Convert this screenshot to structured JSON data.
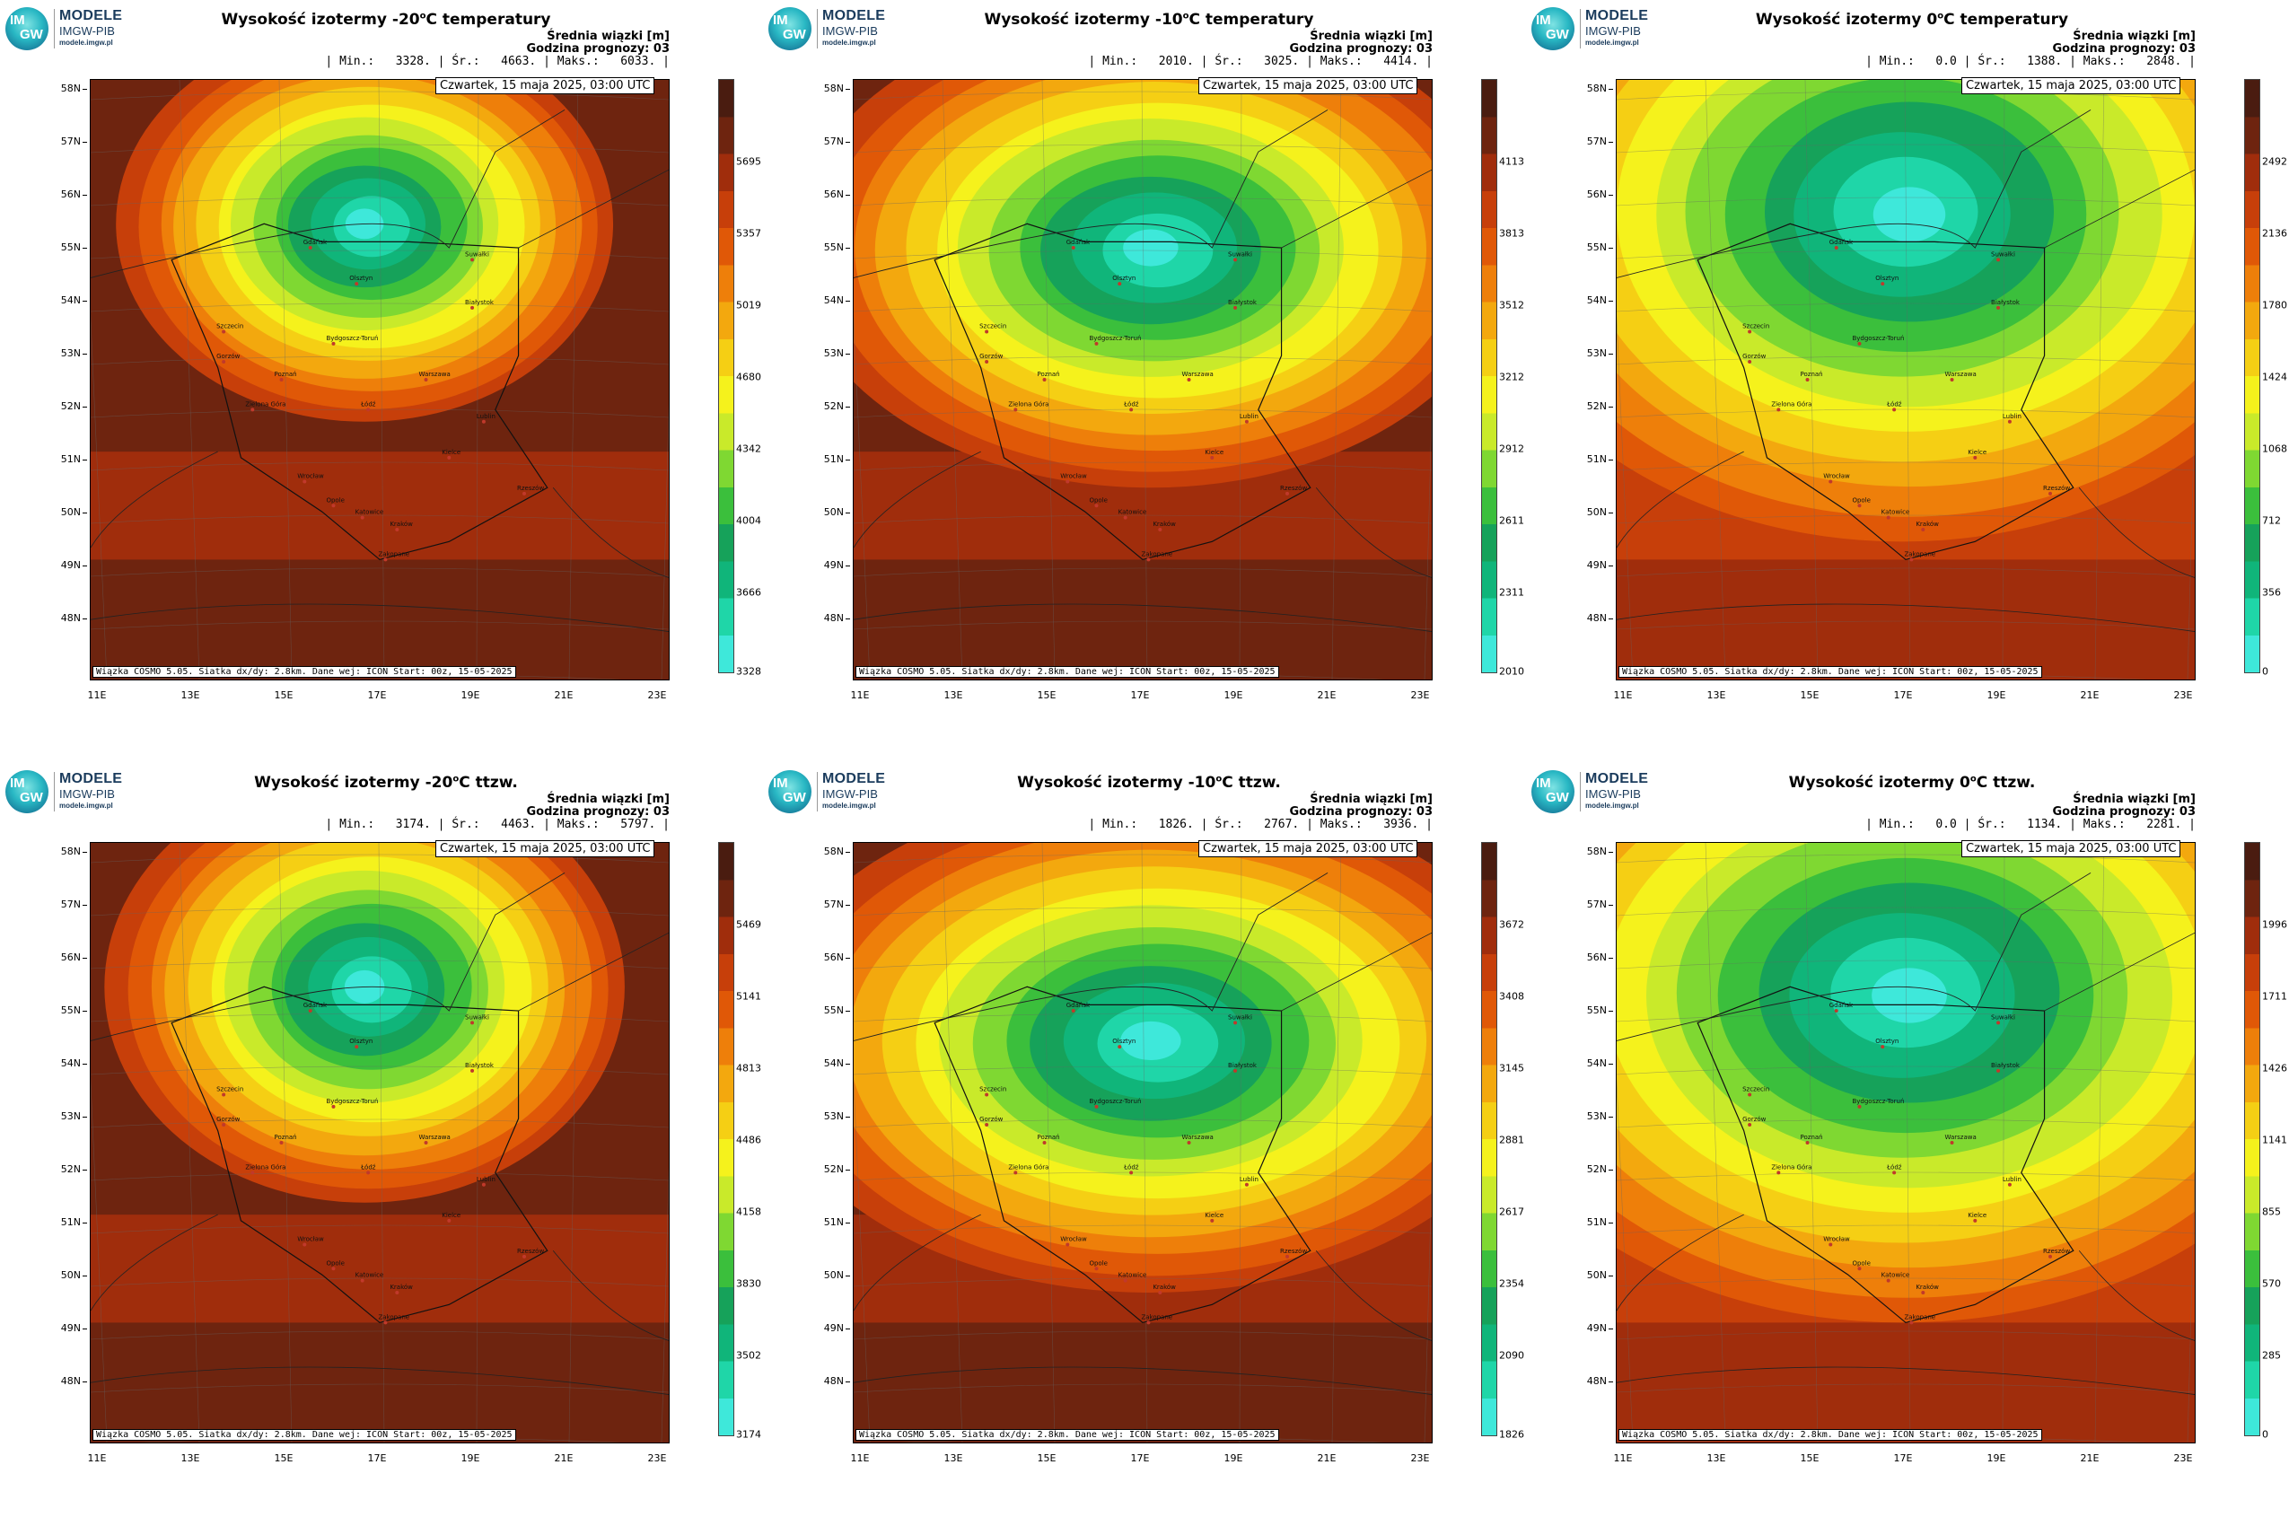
{
  "logo": {
    "line1": "MODELE",
    "line2": "IMGW-PIB",
    "line3": "modele.imgw.pl",
    "badge_top": "IM",
    "badge_bottom": "GW"
  },
  "common": {
    "mean_label": "Średnia wiązki [m]",
    "forecast_hour": "Godzina prognozy: 03",
    "date": "Czwartek, 15 maja 2025, 03:00 UTC",
    "credit": "Wiązka COSMO 5.05. Siatka dx/dy: 2.8km. Dane wej: ICON Start: 00z, 15-05-2025",
    "lat_labels": [
      "58N",
      "57N",
      "56N",
      "55N",
      "54N",
      "53N",
      "52N",
      "51N",
      "50N",
      "49N",
      "48N"
    ],
    "lon_labels": [
      "11E",
      "13E",
      "15E",
      "17E",
      "19E",
      "21E",
      "23E"
    ]
  },
  "colors": {
    "scale": [
      "#3ee8da",
      "#1fd6a8",
      "#10b57a",
      "#16a25a",
      "#3bbf3c",
      "#7fd832",
      "#c9ea2a",
      "#f5f21c",
      "#f5cf14",
      "#f3a80e",
      "#ee7f0a",
      "#e05807",
      "#c73f0a",
      "#a02d0c",
      "#6e240f",
      "#4a1c10"
    ]
  },
  "panels": [
    {
      "name": "iso-m20-temp",
      "title_prefix": "Wysokość izotermy -20",
      "title_suffix": "C temperatury",
      "deg": "o",
      "min": "3328.",
      "mean": "4663.",
      "max": "6033.",
      "colorbar": [
        "5695",
        "5357",
        "5019",
        "4680",
        "4342",
        "4004",
        "3666",
        "3328"
      ]
    },
    {
      "name": "iso-m10-temp",
      "title_prefix": "Wysokość izotermy -10",
      "title_suffix": "C temperatury",
      "deg": "o",
      "min": "2010.",
      "mean": "3025.",
      "max": "4414.",
      "colorbar": [
        "4113",
        "3813",
        "3512",
        "3212",
        "2912",
        "2611",
        "2311",
        "2010"
      ]
    },
    {
      "name": "iso-0-temp",
      "title_prefix": "Wysokość izotermy 0",
      "title_suffix": "C temperatury",
      "deg": "o",
      "min": "0.0",
      "mean": "1388.",
      "max": "2848.",
      "colorbar": [
        "2492",
        "2136",
        "1780",
        "1424",
        "1068",
        "712",
        "356",
        "0"
      ]
    },
    {
      "name": "iso-m20-ttzw",
      "title_prefix": "Wysokość izotermy -20",
      "title_suffix": "C ttzw.",
      "deg": "o",
      "min": "3174.",
      "mean": "4463.",
      "max": "5797.",
      "colorbar": [
        "5469",
        "5141",
        "4813",
        "4486",
        "4158",
        "3830",
        "3502",
        "3174"
      ]
    },
    {
      "name": "iso-m10-ttzw",
      "title_prefix": "Wysokość izotermy -10",
      "title_suffix": "C ttzw.",
      "deg": "o",
      "min": "1826.",
      "mean": "2767.",
      "max": "3936.",
      "colorbar": [
        "3672",
        "3408",
        "3145",
        "2881",
        "2617",
        "2354",
        "2090",
        "1826"
      ]
    },
    {
      "name": "iso-0-ttzw",
      "title_prefix": "Wysokość izotermy 0",
      "title_suffix": "C ttzw.",
      "deg": "o",
      "min": "0.0",
      "mean": "1134.",
      "max": "2281.",
      "colorbar": [
        "1996",
        "1711",
        "1426",
        "1141",
        "855",
        "570",
        "285",
        "0"
      ]
    }
  ],
  "cities": [
    "Gdańsk",
    "Olsztyn",
    "Suwałki",
    "Szczecin",
    "Białystok",
    "Bydgoszcz-Toruń",
    "Gorzów",
    "Poznań",
    "Warszawa",
    "Zielona Góra",
    "Łódź",
    "Lublin",
    "Wrocław",
    "Kielce",
    "Opole",
    "Rzeszów",
    "Katowice",
    "Kraków",
    "Zakopane"
  ],
  "labels": {
    "min": "Min.:",
    "mean": "Śr.:",
    "max": "Maks.:"
  }
}
